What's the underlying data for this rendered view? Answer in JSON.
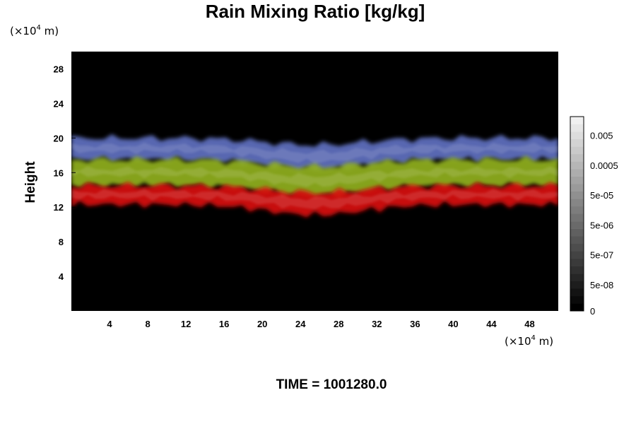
{
  "chart_data": {
    "type": "heatmap",
    "title": "Rain Mixing Ratio [kg/kg]",
    "ylabel": "Height",
    "x_units_prefix": "(×10",
    "x_units_exp": "4",
    "x_units_suffix": " m)",
    "y_units_prefix": "(×10",
    "y_units_exp": "4",
    "y_units_suffix": " m)",
    "xlim": [
      0,
      51
    ],
    "ylim": [
      0,
      30
    ],
    "x_ticks": [
      4,
      8,
      12,
      16,
      20,
      24,
      28,
      32,
      36,
      40,
      44,
      48
    ],
    "x_tick_labels": [
      "4",
      "8",
      "12",
      "16",
      "20",
      "24",
      "28",
      "32",
      "36",
      "40",
      "44",
      "48"
    ],
    "y_ticks": [
      4,
      8,
      12,
      16,
      20,
      24,
      28
    ],
    "y_tick_labels": [
      "4",
      "8",
      "12",
      "16",
      "20",
      "24",
      "28"
    ],
    "layers": [
      {
        "name": "blue",
        "bottom": 17.5,
        "top": 20.0,
        "color": "#6070c0"
      },
      {
        "name": "green",
        "bottom": 14.5,
        "top": 17.5,
        "color": "#90b020"
      },
      {
        "name": "red",
        "bottom": 12.3,
        "top": 14.5,
        "color": "#d81010"
      }
    ],
    "colorbar": {
      "tick_labels": [
        "0",
        "5e-08",
        "5e-07",
        "5e-06",
        "5e-05",
        "0.0005",
        "0.005"
      ],
      "tick_levels": [
        0,
        3,
        7,
        11,
        15,
        19,
        23
      ],
      "n_levels": 26,
      "levels_note": "grayscale from black (0) to white (top)"
    },
    "background_color": "#000000"
  },
  "footer": {
    "time_label": "TIME = 1001280.0"
  }
}
